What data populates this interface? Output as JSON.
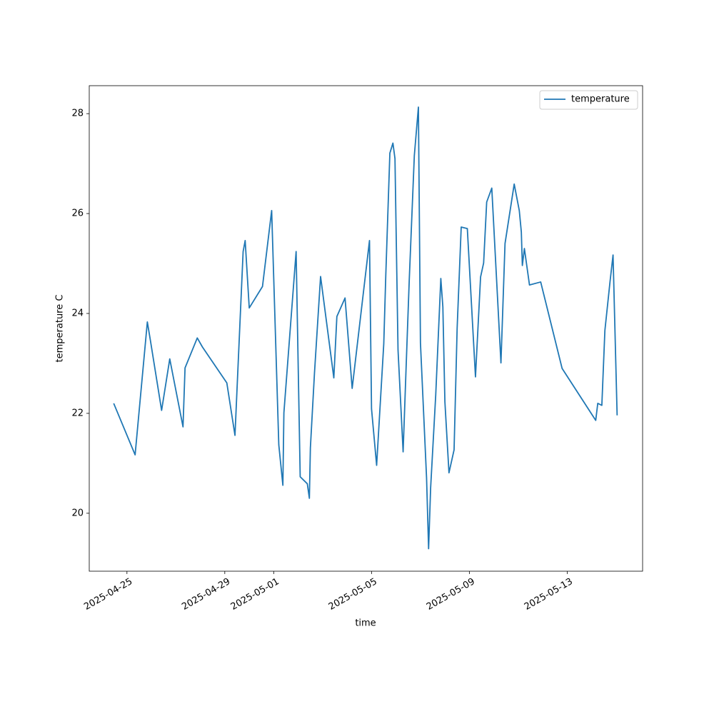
{
  "chart_data": {
    "type": "line",
    "x_label": "time",
    "y_label": "temperature C",
    "xlim": [
      "2025-04-23T11:00",
      "2025-05-16T02:00"
    ],
    "xticks": [
      "2025-04-25",
      "2025-04-29",
      "2025-05-01",
      "2025-05-05",
      "2025-05-09",
      "2025-05-13"
    ],
    "ylim": [
      18.84,
      28.56
    ],
    "yticks": [
      20,
      22,
      24,
      26,
      28
    ],
    "grid": false,
    "legend": "upper right",
    "x": [
      "2025-04-24T11:00",
      "2025-04-25T08:00",
      "2025-04-25T20:00",
      "2025-04-25T23:00",
      "2025-04-26T10:00",
      "2025-04-26T18:00",
      "2025-04-27T07:00",
      "2025-04-27T09:00",
      "2025-04-27T21:00",
      "2025-04-28T02:00",
      "2025-04-29T02:00",
      "2025-04-29T10:00",
      "2025-04-29T18:00",
      "2025-04-29T20:00",
      "2025-04-30T00:00",
      "2025-04-30T13:00",
      "2025-04-30T22:00",
      "2025-05-01T05:00",
      "2025-05-01T09:00",
      "2025-05-01T10:00",
      "2025-05-01T22:00",
      "2025-05-02T02:00",
      "2025-05-02T09:00",
      "2025-05-02T11:00",
      "2025-05-02T12:00",
      "2025-05-02T16:00",
      "2025-05-02T22:00",
      "2025-05-03T11:00",
      "2025-05-03T14:00",
      "2025-05-03T22:00",
      "2025-05-04T05:00",
      "2025-05-04T22:00",
      "2025-05-05T00:00",
      "2025-05-05T05:00",
      "2025-05-05T12:00",
      "2025-05-05T14:00",
      "2025-05-05T18:00",
      "2025-05-05T21:00",
      "2025-05-05T23:00",
      "2025-05-06T02:00",
      "2025-05-06T07:00",
      "2025-05-06T10:00",
      "2025-05-06T13:00",
      "2025-05-06T18:00",
      "2025-05-06T22:00",
      "2025-05-07T00:00",
      "2025-05-07T06:00",
      "2025-05-07T08:00",
      "2025-05-07T10:00",
      "2025-05-07T15:00",
      "2025-05-07T20:00",
      "2025-05-07T22:00",
      "2025-05-08T00:00",
      "2025-05-08T04:00",
      "2025-05-08T09:00",
      "2025-05-08T12:00",
      "2025-05-08T16:00",
      "2025-05-08T22:00",
      "2025-05-09T06:00",
      "2025-05-09T11:00",
      "2025-05-09T14:00",
      "2025-05-09T17:00",
      "2025-05-09T22:00",
      "2025-05-10T07:00",
      "2025-05-10T11:00",
      "2025-05-10T20:00",
      "2025-05-11T01:00",
      "2025-05-11T03:00",
      "2025-05-11T04:00",
      "2025-05-11T06:00",
      "2025-05-11T11:00",
      "2025-05-11T22:00",
      "2025-05-12T19:00",
      "2025-05-14T04:00",
      "2025-05-14T06:00",
      "2025-05-14T10:00",
      "2025-05-14T13:00",
      "2025-05-14T18:00",
      "2025-05-14T21:00",
      "2025-05-15T01:00"
    ],
    "series": [
      {
        "name": "temperature",
        "color": "#1f77b4",
        "values": [
          22.2,
          21.17,
          23.83,
          23.46,
          22.06,
          23.09,
          21.73,
          22.91,
          23.51,
          23.33,
          22.61,
          21.56,
          25.24,
          25.46,
          24.11,
          24.54,
          26.06,
          21.37,
          20.56,
          22.01,
          25.24,
          20.73,
          20.59,
          20.3,
          21.31,
          22.8,
          24.74,
          22.71,
          23.94,
          24.31,
          22.5,
          25.46,
          22.09,
          20.96,
          23.39,
          24.77,
          27.21,
          27.41,
          27.1,
          23.27,
          21.23,
          22.96,
          24.66,
          27.16,
          28.13,
          23.41,
          20.71,
          19.29,
          20.51,
          22.37,
          24.7,
          24.13,
          22.23,
          20.81,
          21.27,
          23.7,
          25.73,
          25.7,
          22.73,
          24.73,
          25.01,
          26.23,
          26.51,
          23.01,
          25.4,
          26.59,
          26.06,
          25.63,
          24.96,
          25.3,
          24.57,
          24.63,
          22.9,
          21.86,
          22.2,
          22.16,
          23.66,
          24.63,
          25.17,
          21.96
        ]
      }
    ]
  }
}
